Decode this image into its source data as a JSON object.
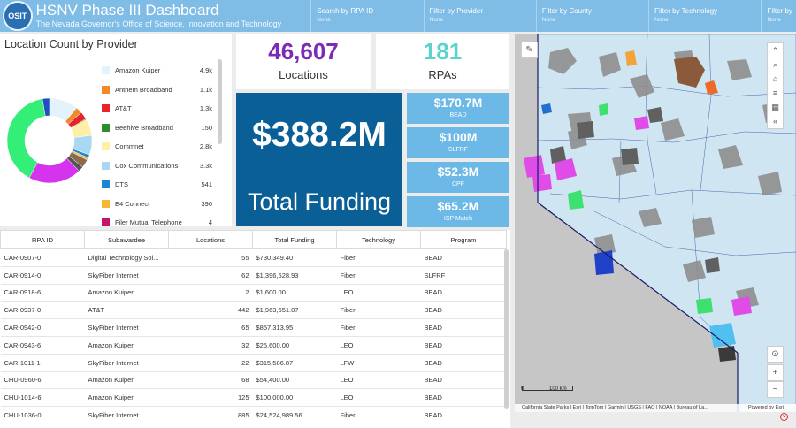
{
  "header": {
    "logo": "OSIT",
    "title": "HSNV Phase III Dashboard",
    "subtitle": "The Nevada Governor's Office of Science, Innovation and Technology",
    "filters": [
      {
        "label": "Search by RPA ID",
        "value": "None"
      },
      {
        "label": "Filter by Provider",
        "value": "None"
      },
      {
        "label": "Filter by County",
        "value": "None"
      },
      {
        "label": "Filter by Technology",
        "value": "None"
      },
      {
        "label": "Filter by",
        "value": "None"
      }
    ]
  },
  "provider_chart": {
    "title": "Location Count by Provider",
    "legend": [
      {
        "name": "Amazon Kuiper",
        "value": "4.9k",
        "color": "#e3f2fb"
      },
      {
        "name": "Anthem Broadband",
        "value": "1.1k",
        "color": "#f08a2c"
      },
      {
        "name": "AT&T",
        "value": "1.3k",
        "color": "#e8232a"
      },
      {
        "name": "Beehive Broadband",
        "value": "150",
        "color": "#2e8b2e"
      },
      {
        "name": "Commnet",
        "value": "2.8k",
        "color": "#fdf0a6"
      },
      {
        "name": "Cox Communications",
        "value": "3.3k",
        "color": "#a9d8f4"
      },
      {
        "name": "DTS",
        "value": "541",
        "color": "#1d86d4"
      },
      {
        "name": "E4 Connect",
        "value": "390",
        "color": "#f7b733"
      },
      {
        "name": "Filer Mutual Telephone",
        "value": "4",
        "color": "#c41566"
      }
    ]
  },
  "chart_data": {
    "type": "pie",
    "title": "Location Count by Provider",
    "series": [
      {
        "name": "Amazon Kuiper",
        "value": 4900,
        "color": "#e3f2fb"
      },
      {
        "name": "Anthem Broadband",
        "value": 1100,
        "color": "#f08a2c"
      },
      {
        "name": "AT&T",
        "value": 1300,
        "color": "#e8232a"
      },
      {
        "name": "Beehive Broadband",
        "value": 150,
        "color": "#2e8b2e"
      },
      {
        "name": "Commnet",
        "value": 2800,
        "color": "#fdf0a6"
      },
      {
        "name": "Cox Communications",
        "value": 3300,
        "color": "#a9d8f4"
      },
      {
        "name": "DTS",
        "value": 541,
        "color": "#1d86d4"
      },
      {
        "name": "E4 Connect",
        "value": 390,
        "color": "#f7b733"
      },
      {
        "name": "Filer Mutual Telephone",
        "value": 4,
        "color": "#c41566"
      },
      {
        "value": 1400,
        "color": "#8a6b4e"
      },
      {
        "value": 900,
        "color": "#555555"
      },
      {
        "value": 9000,
        "color": "#d633ee"
      },
      {
        "value": 17500,
        "color": "#33ee77"
      },
      {
        "value": 1200,
        "color": "#2050c0"
      }
    ]
  },
  "kpis": {
    "locations_value": "46,607",
    "locations_label": "Locations",
    "rpas_value": "181",
    "rpas_label": "RPAs",
    "locations_color": "#7d2bb4",
    "rpas_color": "#5bd3cc"
  },
  "total_funding": {
    "value": "$388.2M",
    "label": "Total Funding"
  },
  "funding": [
    {
      "value": "$170.7M",
      "label": "BEAD"
    },
    {
      "value": "$100M",
      "label": "SLFRF"
    },
    {
      "value": "$52.3M",
      "label": "CPF"
    },
    {
      "value": "$65.2M",
      "label": "ISP Match"
    }
  ],
  "table": {
    "columns": [
      "RPA ID",
      "Subawardee",
      "Locations",
      "Total Funding",
      "Technology",
      "Program"
    ],
    "rows": [
      [
        "CAR-0907-0",
        "Digital Technology Sol...",
        "55",
        "$730,349.40",
        "Fiber",
        "BEAD"
      ],
      [
        "CAR-0914-0",
        "SkyFiber Internet",
        "62",
        "$1,396,528.93",
        "Fiber",
        "SLFRF"
      ],
      [
        "CAR-0918-6",
        "Amazon Kuiper",
        "2",
        "$1,600.00",
        "LEO",
        "BEAD"
      ],
      [
        "CAR-0937-0",
        "AT&T",
        "442",
        "$1,963,651.07",
        "Fiber",
        "BEAD"
      ],
      [
        "CAR-0942-0",
        "SkyFiber Internet",
        "65",
        "$857,313.95",
        "Fiber",
        "BEAD"
      ],
      [
        "CAR-0943-6",
        "Amazon Kuiper",
        "32",
        "$25,600.00",
        "LEO",
        "BEAD"
      ],
      [
        "CAR-1011-1",
        "SkyFiber Internet",
        "22",
        "$315,586.87",
        "LFW",
        "BEAD"
      ],
      [
        "CHU-0960-6",
        "Amazon Kuiper",
        "68",
        "$54,400.00",
        "LEO",
        "BEAD"
      ],
      [
        "CHU-1014-6",
        "Amazon Kuiper",
        "125",
        "$100,000.00",
        "LEO",
        "BEAD"
      ],
      [
        "CHU-1036-0",
        "SkyFiber Internet",
        "885",
        "$24,524,989.56",
        "Fiber",
        "BEAD"
      ]
    ]
  },
  "map": {
    "scale_zero": "0",
    "scale_label": "100 km",
    "attribution": "California State Parks | Esri | TomTom | Garmin | USGS | FAO | NOAA | Bureau of La...",
    "powered_by": "Powered by Esri"
  }
}
